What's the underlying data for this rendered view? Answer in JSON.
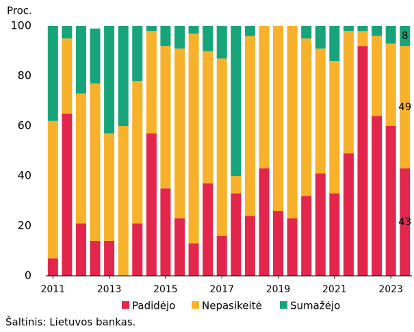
{
  "chart_data": {
    "type": "stacked_bar",
    "y_axis_label": "Proc.",
    "source": "Šaltinis: Lietuvos bankas.",
    "categories": [
      "2011",
      null,
      null,
      null,
      "2013",
      null,
      null,
      null,
      "2015",
      null,
      null,
      null,
      "2017",
      null,
      null,
      null,
      "2019",
      null,
      null,
      null,
      "2021",
      null,
      null,
      null,
      "2023",
      null
    ],
    "series": [
      {
        "name": "Padidėjo",
        "color": "#e3264c",
        "values": [
          7,
          65,
          21,
          14,
          14,
          0,
          21,
          57,
          35,
          23,
          13,
          37,
          16,
          33,
          24,
          43,
          26,
          23,
          32,
          41,
          33,
          49,
          92,
          64,
          60,
          43
        ]
      },
      {
        "name": "Nepasikeitė",
        "color": "#f7b12a",
        "values": [
          55,
          30,
          52,
          63,
          43,
          60,
          57,
          41,
          57,
          68,
          84,
          53,
          71,
          7,
          72,
          57,
          74,
          77,
          63,
          50,
          53,
          49,
          6,
          32,
          33,
          49
        ]
      },
      {
        "name": "Sumažėjo",
        "color": "#17a47a",
        "values": [
          38,
          5,
          27,
          22,
          43,
          40,
          22,
          2,
          8,
          9,
          3,
          10,
          13,
          60,
          4,
          0,
          0,
          0,
          5,
          9,
          14,
          2,
          2,
          4,
          7,
          8
        ]
      }
    ],
    "ylim": [
      0,
      100
    ],
    "yticks": [
      0,
      20,
      40,
      60,
      80,
      100
    ],
    "grid": false,
    "label_last_bar": true,
    "legend": "bottom"
  }
}
